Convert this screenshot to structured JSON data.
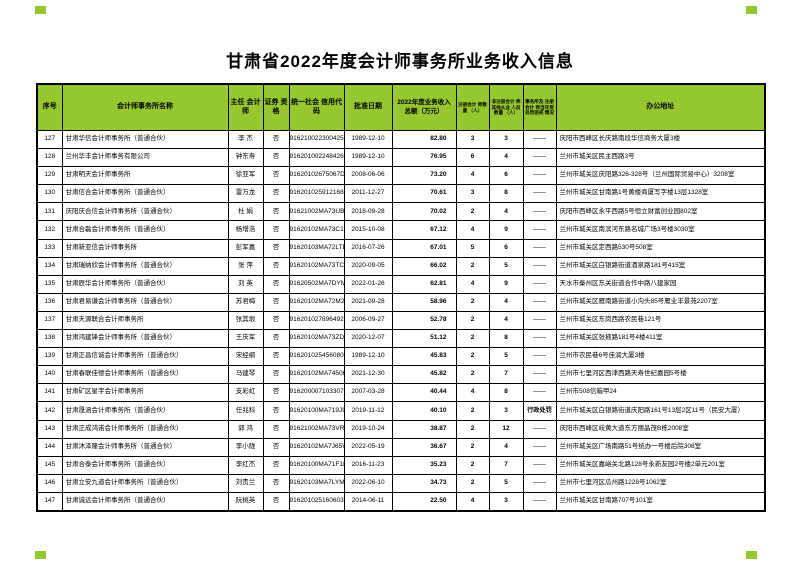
{
  "page": {
    "title": "甘肃省2022年度会计师事务所业务收入信息"
  },
  "colors": {
    "header_bg": "#95C72F",
    "corner_mark": "#95C72F",
    "border": "#000000",
    "page_bg": "#FFFFFF"
  },
  "table": {
    "headers": [
      "序号",
      "会计师事务所名称",
      "主任 会计师",
      "证券 资格",
      "统一社会 信用代码",
      "批准日期",
      "2022年度业务收入 总额（万元）",
      "注册会计 师数量 （人）",
      "非注册会计 师其他从业 人员数量 （人）",
      "事务所及 注册会计 师当年受 处罚惩戒 情况",
      "办公地址"
    ],
    "penalty_placeholder": "——",
    "rows": [
      {
        "no": "127",
        "name": "甘肃华信会计师事务所（普通合伙）",
        "chief": "李 杰",
        "sec": "否",
        "code": "916210022300425K8H",
        "date": "1989-12-10",
        "revenue": "82.80",
        "cpa": "3",
        "other": "3",
        "penalty": "——",
        "address": "庆阳市西峰区长庆路南段华信商务大厦3楼"
      },
      {
        "no": "128",
        "name": "兰州华丰会计师事务有限公司",
        "chief": "钟东寿",
        "sec": "否",
        "code": "91620100224842608T",
        "date": "1989-12-10",
        "revenue": "76.95",
        "cpa": "6",
        "other": "4",
        "penalty": "——",
        "address": "兰州市城关区民主西路3号"
      },
      {
        "no": "129",
        "name": "甘肃明天会计师事务所",
        "chief": "徐亚军",
        "sec": "否",
        "code": "91620102675067D14T",
        "date": "2008-06-06",
        "revenue": "73.20",
        "cpa": "4",
        "other": "6",
        "penalty": "——",
        "address": "兰州市城关区庆阳路326-328号（兰州国际贸易中心）3208室"
      },
      {
        "no": "130",
        "name": "甘肃信合会计师事务所（普通合伙）",
        "chief": "雷万龙",
        "sec": "否",
        "code": "916201025912168493",
        "date": "2011-12-27",
        "revenue": "70.61",
        "cpa": "3",
        "other": "8",
        "penalty": "——",
        "address": "兰州市城关区甘南路1号黄楼商厦写字楼13层1328室"
      },
      {
        "no": "131",
        "name": "庆阳庆合信会计师事务所（普通合伙）",
        "chief": "杜 娟",
        "sec": "否",
        "code": "91621002MA73UBK3JB",
        "date": "2018-09-28",
        "revenue": "70.02",
        "cpa": "2",
        "other": "4",
        "penalty": "——",
        "address": "庆阳市西峰区永平西路5号恒立财富创业园802室"
      },
      {
        "no": "132",
        "name": "甘肃合磊会计师事务所（普通合伙）",
        "chief": "杨增浩",
        "sec": "否",
        "code": "91620102MA73C1E9AA",
        "date": "2015-10-08",
        "revenue": "67.12",
        "cpa": "4",
        "other": "9",
        "penalty": "——",
        "address": "兰州市城关区南滨河东路名城广场3号楼3030室"
      },
      {
        "no": "133",
        "name": "甘肃新亚信会计师事务所",
        "chief": "彭军嘉",
        "sec": "否",
        "code": "91620103MA72LTDP2G",
        "date": "2016-07-26",
        "revenue": "67.01",
        "cpa": "5",
        "other": "6",
        "penalty": "——",
        "address": "兰州市城关区定西路530号508室"
      },
      {
        "no": "134",
        "name": "甘肃瑞纳欣会计师事务所（普通合伙）",
        "chief": "张 萍",
        "sec": "否",
        "code": "91620102MA73TCW12G",
        "date": "2020-09-05",
        "revenue": "66.02",
        "cpa": "2",
        "other": "5",
        "penalty": "——",
        "address": "兰州市城关区白银路街道酒泉路181号415室"
      },
      {
        "no": "135",
        "name": "甘肃辰华会计师事务所（普通合伙）",
        "chief": "刘 英",
        "sec": "否",
        "code": "91620502MA7DYMC63A",
        "date": "2022-01-26",
        "revenue": "62.81",
        "cpa": "4",
        "other": "9",
        "penalty": "——",
        "address": "天水市秦州区东关街道合作中路八建家园"
      },
      {
        "no": "136",
        "name": "甘肃君易谦会计师事务所（普通合伙）",
        "chief": "苏君梅",
        "sec": "否",
        "code": "91620102MA72M2R32R",
        "date": "2021-09-28",
        "revenue": "58.96",
        "cpa": "2",
        "other": "4",
        "penalty": "——",
        "address": "兰州市城关区雁南路街道小沟头85号雁业丰景苑2207室"
      },
      {
        "no": "137",
        "name": "甘肃天源联合会计师事务所",
        "chief": "张其垠",
        "sec": "否",
        "code": "916201027896492760",
        "date": "2006-09-27",
        "revenue": "52.78",
        "cpa": "2",
        "other": "4",
        "penalty": "——",
        "address": "兰州市城关区东岗西路农民巷121号"
      },
      {
        "no": "138",
        "name": "甘肃鸿建锋会计师事务所（普通合伙）",
        "chief": "王庆军",
        "sec": "否",
        "code": "91620102MA73ZDP67R",
        "date": "2020-12-07",
        "revenue": "51.12",
        "cpa": "2",
        "other": "8",
        "penalty": "——",
        "address": "兰州市城关区张掖路181号4楼411室"
      },
      {
        "no": "139",
        "name": "甘肃正昌信诚会计师事务所（普通合伙）",
        "chief": "宋经纲",
        "sec": "否",
        "code": "916201025456080490",
        "date": "1989-12-10",
        "revenue": "45.83",
        "cpa": "2",
        "other": "5",
        "penalty": "——",
        "address": "兰州市农民巷6号佳润大厦3楼"
      },
      {
        "no": "140",
        "name": "甘肃春联佳德会计师事务所（普通合伙）",
        "chief": "马建琴",
        "sec": "否",
        "code": "91620102MA74506G79",
        "date": "2021-12-30",
        "revenue": "45.82",
        "cpa": "2",
        "other": "7",
        "penalty": "——",
        "address": "兰州市七里河区西津西路天寿世纪嘉园5号楼"
      },
      {
        "no": "141",
        "name": "甘肃矿区星宇会计师事务所",
        "chief": "支彩虹",
        "sec": "否",
        "code": "916200007103307334",
        "date": "2007-03-28",
        "revenue": "40.44",
        "cpa": "4",
        "other": "8",
        "penalty": "——",
        "address": "兰州市508信箱甲24"
      },
      {
        "no": "142",
        "name": "甘肃晟涵会计师事务所（普通合伙）",
        "chief": "任兆科",
        "sec": "否",
        "code": "91620100MA719J987R",
        "date": "2019-11-12",
        "revenue": "40.10",
        "cpa": "2",
        "other": "3",
        "penalty": "行政处罚",
        "address": "兰州市城关区白银路街道庆阳路161号13层2区11号（民安大厦）"
      },
      {
        "no": "143",
        "name": "甘肃正成鸿诺会计师事务所（普通合伙）",
        "chief": "郭 鸿",
        "sec": "否",
        "code": "91621002MA73VRJCXN",
        "date": "2019-10-24",
        "revenue": "38.87",
        "cpa": "2",
        "other": "12",
        "penalty": "——",
        "address": "庆阳市西峰区岐黄大道东方丽晶茂B栋2008室"
      },
      {
        "no": "144",
        "name": "甘肃沐泽隆会计师事务所（普通合伙）",
        "chief": "李小陇",
        "sec": "否",
        "code": "91620102MA7J65WE36",
        "date": "2022-05-19",
        "revenue": "36.67",
        "cpa": "2",
        "other": "4",
        "penalty": "——",
        "address": "兰州市城关区广场南路51号统办一号楼后院308室"
      },
      {
        "no": "145",
        "name": "甘肃合泰会计师事务所（普通合伙）",
        "chief": "李红杰",
        "sec": "否",
        "code": "91620100MA71F1BL8Q",
        "date": "2016-11-23",
        "revenue": "35.23",
        "cpa": "2",
        "other": "7",
        "penalty": "——",
        "address": "兰州市城关区嘉峪关北路128号永新友园2号楼2单元201室"
      },
      {
        "no": "146",
        "name": "甘肃立安九道会计师事务所（普通合伙）",
        "chief": "刘贵兰",
        "sec": "否",
        "code": "91620103MA7LYM5N9G",
        "date": "2022-06-10",
        "revenue": "34.73",
        "cpa": "2",
        "other": "5",
        "penalty": "——",
        "address": "兰州市七里河区瓜州路1228号1062室"
      },
      {
        "no": "147",
        "name": "甘肃诚远会计师事务所（普通合伙）",
        "chief": "阮桃英",
        "sec": "否",
        "code": "916201025160603846",
        "date": "2014-06-11",
        "revenue": "22.50",
        "cpa": "4",
        "other": "3",
        "penalty": "——",
        "address": "兰州市城关区甘南路707号101室"
      }
    ]
  }
}
